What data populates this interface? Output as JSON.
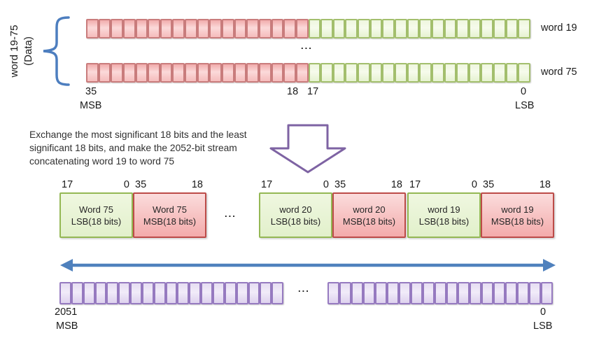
{
  "left_label": {
    "line1": "word 19-75",
    "line2": "(Data)"
  },
  "top_section": {
    "red_cell_count": 18,
    "green_cell_count": 18,
    "row_labels": [
      "word 19",
      "word 75"
    ],
    "ellipsis": "...",
    "bit_labels": {
      "msb_index": "35",
      "msb": "MSB",
      "mid_left": "18",
      "mid_right": "17",
      "lsb_index": "0",
      "lsb": "LSB"
    }
  },
  "description": {
    "lines": [
      "Exchange the most significant 18 bits and the least",
      "significant 18 bits, and make the 2052-bit stream",
      "concatenating word 19 to word 75"
    ]
  },
  "middle": {
    "ellipsis": "...",
    "boxes": [
      {
        "title": "Word 75",
        "subtitle": "LSB(18 bits)",
        "left_bit": "17",
        "right_bit": "0"
      },
      {
        "title": "Word 75",
        "subtitle": "MSB(18 bits)",
        "left_bit": "35",
        "right_bit": "18"
      },
      {
        "title": "word 20",
        "subtitle": "LSB(18 bits)",
        "left_bit": "17",
        "right_bit": "0"
      },
      {
        "title": "word 20",
        "subtitle": "MSB(18 bits)",
        "left_bit": "35",
        "right_bit": "18"
      },
      {
        "title": "word 19",
        "subtitle": "LSB(18 bits)",
        "left_bit": "17",
        "right_bit": "0"
      },
      {
        "title": "word 19",
        "subtitle": "MSB(18 bits)",
        "left_bit": "35",
        "right_bit": "18"
      }
    ]
  },
  "bottom_section": {
    "left_cell_count": 19,
    "right_cell_count": 19,
    "ellipsis": "...",
    "labels": {
      "msb_index": "2051",
      "msb": "MSB",
      "lsb_index": "0",
      "lsb": "LSB"
    }
  },
  "colors": {
    "red_fill": "#f5bcbc",
    "red_border": "#c97c7c",
    "green_fill": "#e6f2d1",
    "green_border": "#a3bf6d",
    "purple_fill": "#ded2ee",
    "purple_border": "#967ac0",
    "middle_red_border": "#bc4b48",
    "middle_green_border": "#94b854",
    "blue_accent": "#4f81bd",
    "purple_arrow": "#7e63a3",
    "text": "#262626"
  }
}
